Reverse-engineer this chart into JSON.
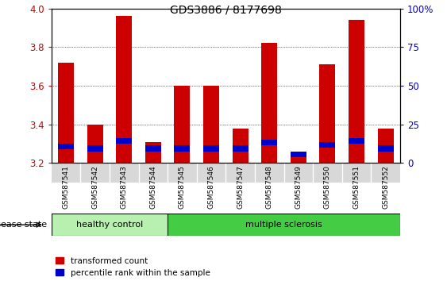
{
  "title": "GDS3886 / 8177698",
  "samples": [
    "GSM587541",
    "GSM587542",
    "GSM587543",
    "GSM587544",
    "GSM587545",
    "GSM587546",
    "GSM587547",
    "GSM587548",
    "GSM587549",
    "GSM587550",
    "GSM587551",
    "GSM587552"
  ],
  "red_values": [
    3.72,
    3.4,
    3.96,
    3.31,
    3.6,
    3.6,
    3.38,
    3.82,
    3.24,
    3.71,
    3.94,
    3.38
  ],
  "blue_values": [
    0.03,
    0.03,
    0.03,
    0.03,
    0.03,
    0.03,
    0.03,
    0.03,
    0.03,
    0.03,
    0.03,
    0.03
  ],
  "blue_bottoms": [
    3.27,
    3.26,
    3.3,
    3.26,
    3.26,
    3.26,
    3.26,
    3.29,
    3.23,
    3.28,
    3.3,
    3.26
  ],
  "ymin": 3.2,
  "ymax": 4.0,
  "yticks": [
    3.2,
    3.4,
    3.6,
    3.8,
    4.0
  ],
  "right_yticks": [
    0,
    25,
    50,
    75,
    100
  ],
  "right_ytick_labels": [
    "0",
    "25",
    "50",
    "75",
    "100%"
  ],
  "bar_color_red": "#cc0000",
  "bar_color_blue": "#0000cc",
  "n_healthy": 4,
  "n_ms": 8,
  "healthy_label": "healthy control",
  "ms_label": "multiple sclerosis",
  "disease_state_label": "disease state",
  "legend_red": "transformed count",
  "legend_blue": "percentile rank within the sample",
  "tick_color_left": "#cc0000",
  "tick_color_right": "#0000cc",
  "healthy_color": "#b8f0b0",
  "ms_color": "#44cc44"
}
